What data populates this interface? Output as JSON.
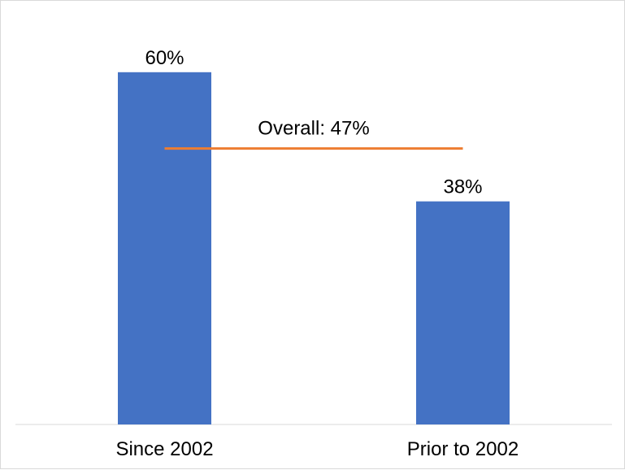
{
  "chart_data": {
    "type": "bar",
    "categories": [
      "Since 2002",
      "Prior to 2002"
    ],
    "values": [
      60,
      38
    ],
    "data_labels": [
      "60%",
      "38%"
    ],
    "ylim": [
      0,
      70
    ],
    "grid": false,
    "reference_line": {
      "value": 47,
      "label": "Overall: 47%"
    },
    "colors": {
      "bar": "#4472C4",
      "reference_line": "#ED7D31",
      "axis": "#d9d9d9"
    }
  }
}
